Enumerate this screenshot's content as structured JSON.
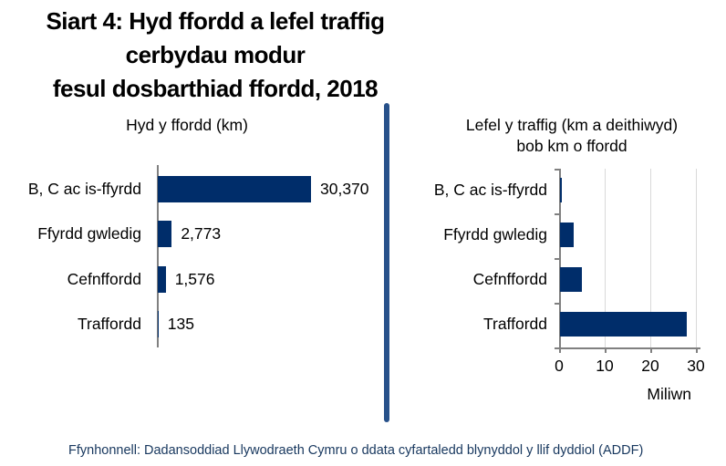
{
  "title": {
    "line1": "Siart 4: Hyd ffordd a lefel traffig cerbydau modur",
    "line2": "fesul dosbarthiad ffordd, 2018"
  },
  "source": "Ffynhonnell: Dadansoddiad Llywodraeth Cymru o ddata cyfartaledd blynyddol y llif dyddiol (ADDF)",
  "colors": {
    "bar": "#002d6a",
    "divider": "#27518a",
    "axis": "#808080",
    "gridline": "#d9d9d9",
    "title_text": "#000000",
    "source_text": "#17375e"
  },
  "chart_data": [
    {
      "type": "bar",
      "orientation": "horizontal",
      "title": "Hyd y ffordd (km)",
      "categories": [
        "B, C ac is-ffyrdd",
        "Ffyrdd gwledig",
        "Cefnffordd",
        "Traffordd"
      ],
      "values": [
        30370,
        2773,
        1576,
        135
      ],
      "value_labels": [
        "30,370",
        "2,773",
        "1,576",
        "135"
      ],
      "xlim": [
        0,
        30370
      ],
      "grid": false,
      "legend": "none"
    },
    {
      "type": "bar",
      "orientation": "horizontal",
      "title": "Lefel y traffig (km a deithiwyd) bob km o ffordd",
      "title_lines": [
        "Lefel y traffig (km a deithiwyd)",
        "bob km o ffordd"
      ],
      "categories": [
        "B, C ac is-ffyrdd",
        "Ffyrdd gwledig",
        "Cefnffordd",
        "Traffordd"
      ],
      "values": [
        0.4,
        3,
        4.8,
        27.8
      ],
      "xlabel": "Miliwn",
      "xticks": [
        0,
        10,
        20,
        30
      ],
      "xlim": [
        0,
        30
      ],
      "grid": true,
      "legend": "none"
    }
  ]
}
